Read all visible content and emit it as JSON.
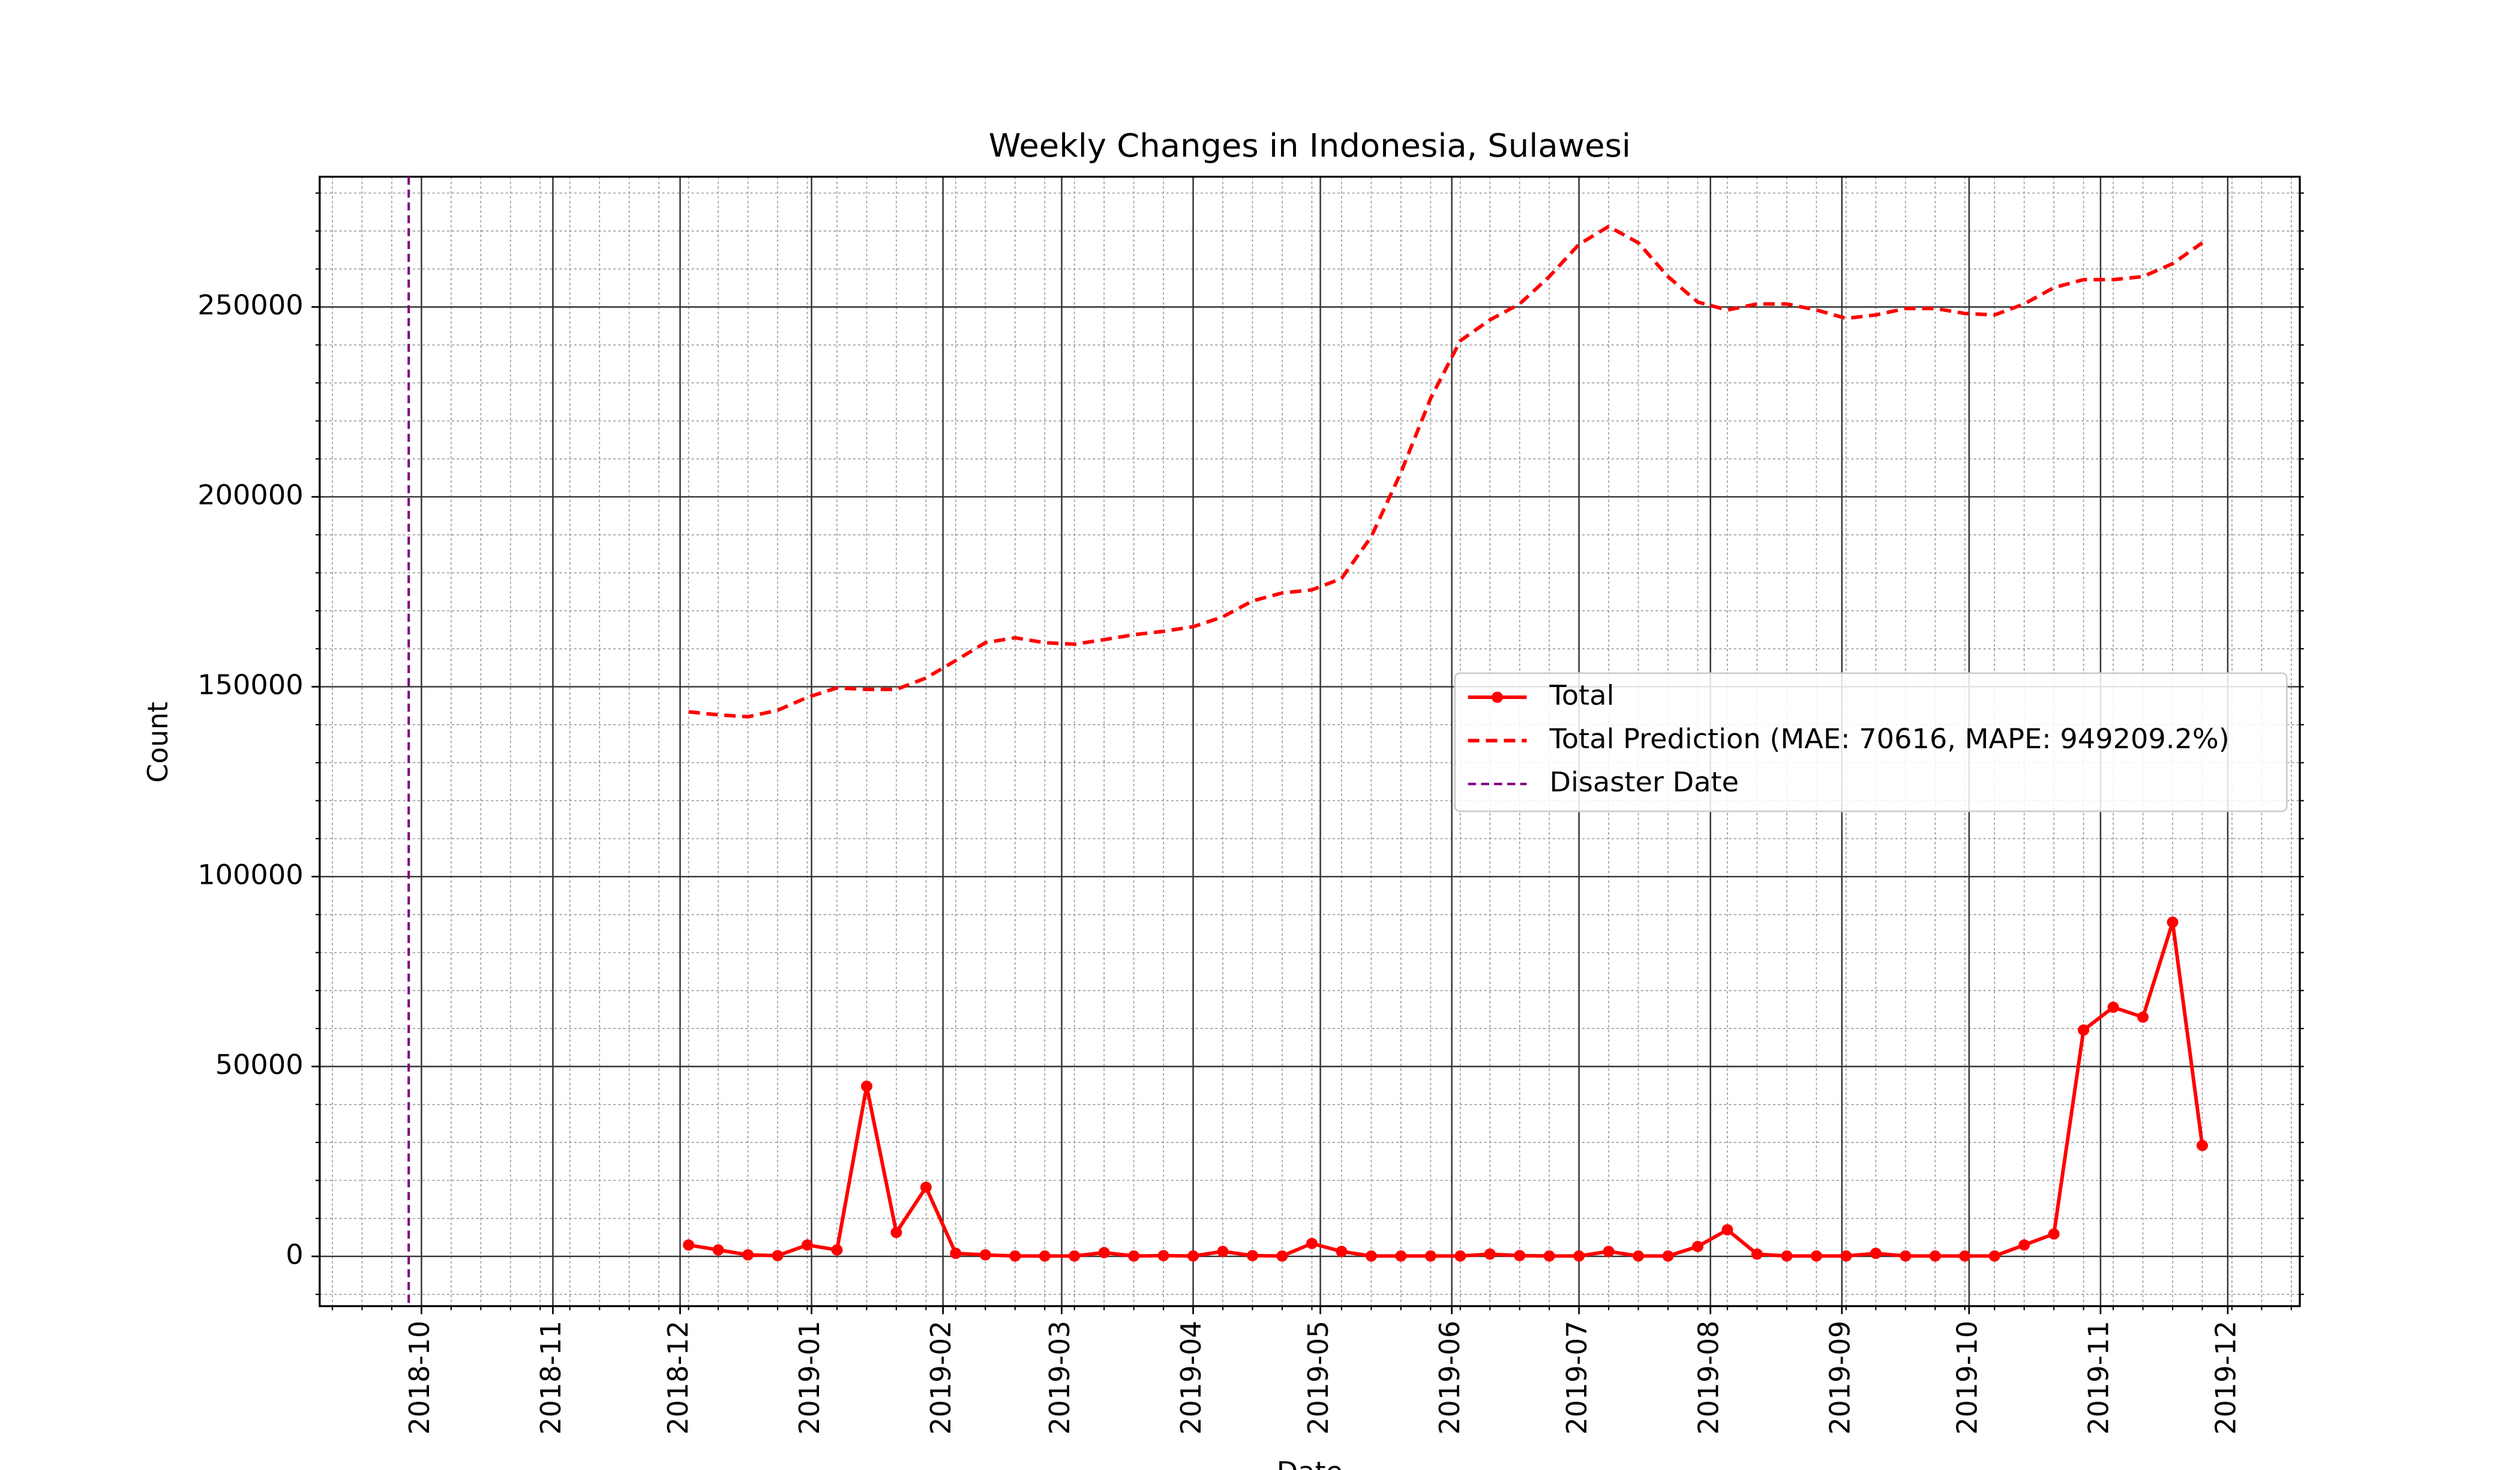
{
  "chart_data": {
    "type": "line",
    "title": "Weekly Changes in Indonesia, Sulawesi",
    "xlabel": "Date",
    "ylabel": "Count",
    "x": [
      17868,
      17875,
      17882,
      17889,
      17896,
      17903,
      17910,
      17917,
      17924,
      17931,
      17938,
      17945,
      17952,
      17959,
      17966,
      17973,
      17980,
      17987,
      17994,
      18001,
      18008,
      18015,
      18022,
      18029,
      18036,
      18043,
      18050,
      18057,
      18064,
      18071,
      18078,
      18085,
      18092,
      18099,
      18106,
      18113,
      18120,
      18127,
      18134,
      18141,
      18148,
      18155,
      18162,
      18169,
      18176,
      18183,
      18190,
      18197,
      18204,
      18211,
      18218,
      18225
    ],
    "series": [
      {
        "name": "Total",
        "color": "#ff0000",
        "style": "solid",
        "marker": true,
        "values": [
          3000,
          1700,
          400,
          200,
          3000,
          1700,
          44800,
          6300,
          18200,
          800,
          400,
          100,
          100,
          100,
          1000,
          100,
          200,
          100,
          1300,
          200,
          100,
          3400,
          1300,
          100,
          100,
          100,
          100,
          600,
          200,
          100,
          100,
          1300,
          100,
          100,
          2600,
          7000,
          600,
          100,
          100,
          100,
          800,
          100,
          100,
          100,
          100,
          3000,
          5900,
          59600,
          65600,
          63000,
          88000,
          29200
        ]
      },
      {
        "name": "Total Prediction (MAE: 70616, MAPE: 949209.2%)",
        "color": "#ff0000",
        "style": "dashed",
        "marker": false,
        "values": [
          143400,
          142600,
          142100,
          143800,
          147200,
          149700,
          149300,
          149300,
          152300,
          156900,
          161600,
          162900,
          161600,
          161200,
          162400,
          163700,
          164600,
          165800,
          168400,
          172600,
          174700,
          175500,
          178500,
          189500,
          206400,
          225900,
          241100,
          246600,
          250800,
          258000,
          266500,
          271200,
          266900,
          258000,
          251300,
          249200,
          250800,
          250800,
          249200,
          247000,
          247900,
          249600,
          249600,
          248300,
          247900,
          250800,
          255100,
          257200,
          257200,
          258000,
          261400,
          266900
        ]
      }
    ],
    "disaster_date": {
      "name": "Disaster Date",
      "x": 17802,
      "color": "#800080"
    },
    "xlim": [
      17781,
      18248
    ],
    "xticks": [
      {
        "value": 17805,
        "label": "2018-10"
      },
      {
        "value": 17836,
        "label": "2018-11"
      },
      {
        "value": 17866,
        "label": "2018-12"
      },
      {
        "value": 17897,
        "label": "2019-01"
      },
      {
        "value": 17928,
        "label": "2019-02"
      },
      {
        "value": 17956,
        "label": "2019-03"
      },
      {
        "value": 17987,
        "label": "2019-04"
      },
      {
        "value": 18017,
        "label": "2019-05"
      },
      {
        "value": 18048,
        "label": "2019-06"
      },
      {
        "value": 18078,
        "label": "2019-07"
      },
      {
        "value": 18109,
        "label": "2019-08"
      },
      {
        "value": 18140,
        "label": "2019-09"
      },
      {
        "value": 18170,
        "label": "2019-10"
      },
      {
        "value": 18201,
        "label": "2019-11"
      },
      {
        "value": 18231,
        "label": "2019-12"
      }
    ],
    "ylim": [
      -13100,
      284300
    ],
    "yticks": [
      0,
      50000,
      100000,
      150000,
      200000,
      250000
    ],
    "grid": true,
    "minor_grid": true,
    "legend": "center right"
  }
}
